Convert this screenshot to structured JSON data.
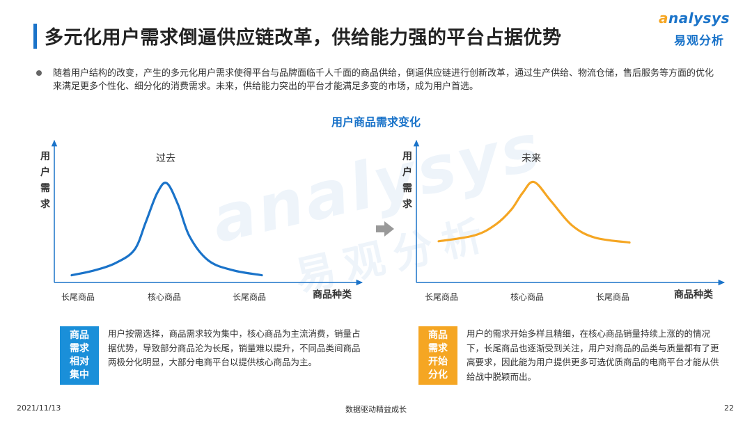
{
  "header": {
    "title": "多元化用户需求倒逼供应链改革，供给能力强的平台占据优势",
    "logo_en_a": "a",
    "logo_en_rest": "nalysys",
    "logo_cn": "易观分析"
  },
  "intro": "随着用户结构的改变，产生的多元化用户需求使得平台与品牌面临千人千面的商品供给，倒逼供应链进行创新改革，通过生产供给、物流仓储，售后服务等方面的优化来满足更多个性化、细分化的消费需求。未来，供给能力突出的平台才能满足多变的市场，成为用户首选。",
  "chart_heading": "用户商品需求变化",
  "watermark": {
    "en": "analysys",
    "cn": "易观分析"
  },
  "colors": {
    "accent": "#1a73c9",
    "past_line": "#1a73c9",
    "future_line": "#f5a623",
    "left_tag": "#1a8fd9",
    "right_tag": "#f5a623"
  },
  "chart_data": [
    {
      "type": "line",
      "title": "过去",
      "ylabel": "用户需求",
      "xlabel": "商品种类",
      "x_ticks": [
        "长尾商品",
        "核心商品",
        "长尾商品"
      ],
      "x": [
        0,
        0.12,
        0.23,
        0.33,
        0.39,
        0.45,
        0.5,
        0.56,
        0.62,
        0.72,
        0.85,
        1.0
      ],
      "series": [
        {
          "values": [
            0.06,
            0.1,
            0.16,
            0.27,
            0.5,
            0.74,
            0.82,
            0.64,
            0.38,
            0.18,
            0.1,
            0.06
          ]
        }
      ],
      "ylim": [
        0,
        1
      ],
      "grid": false
    },
    {
      "type": "line",
      "title": "未来",
      "ylabel": "用户需求",
      "xlabel": "商品种类",
      "x_ticks": [
        "长尾商品",
        "核心商品",
        "长尾商品"
      ],
      "x": [
        0,
        0.19,
        0.3,
        0.38,
        0.44,
        0.5,
        0.59,
        0.7,
        0.82,
        1.0
      ],
      "series": [
        {
          "values": [
            0.34,
            0.39,
            0.48,
            0.6,
            0.74,
            0.83,
            0.67,
            0.47,
            0.37,
            0.33
          ]
        }
      ],
      "ylim": [
        0,
        1
      ],
      "grid": false
    }
  ],
  "left_box": {
    "tag": "商品需求相对集中",
    "text": "用户按需选择，商品需求较为集中，核心商品为主流消费，销量占据优势，导致部分商品沦为长尾，销量难以提升，不同品类间商品两极分化明显，大部分电商平台以提供核心商品为主。"
  },
  "right_box": {
    "tag": "商品需求开始分化",
    "text": "用户的需求开始多样且精细，在核心商品销量持续上涨的的情况下，长尾商品也逐渐受到关注，用户对商品的品类与质量都有了更高要求，因此能为用户提供更多可选优质商品的电商平台才能从供给战中脱颖而出。"
  },
  "footer": {
    "date": "2021/11/13",
    "center": "数据驱动精益成长",
    "page": "22"
  }
}
